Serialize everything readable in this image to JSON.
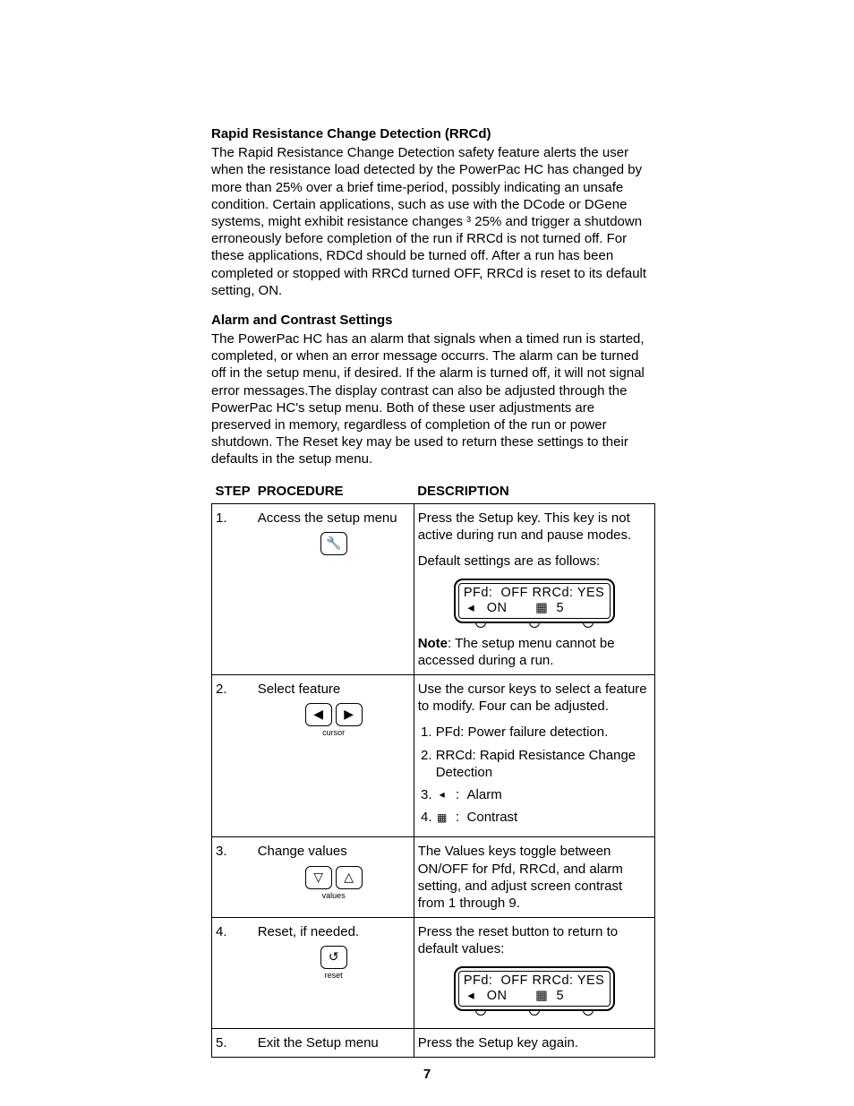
{
  "rrcd": {
    "heading": "Rapid Resistance Change Detection (RRCd)",
    "body": "The Rapid Resistance Change Detection safety feature alerts the user when the resistance load detected by the PowerPac HC has changed by more than 25% over a brief time-period, possibly indicating an unsafe condition. Certain applications, such as use with the DCode or DGene systems, might exhibit resistance changes ³ 25% and trigger a shutdown erroneously before completion of the run if RRCd is not turned off. For these applications, RDCd should be turned off. After a run has been completed or stopped with RRCd turned OFF, RRCd is reset to its default setting, ON."
  },
  "alarm": {
    "heading": "Alarm and Contrast Settings",
    "body": "The PowerPac HC has an alarm that signals when a timed run is started, completed, or when an error message occurrs. The alarm can be turned off in the setup menu, if desired. If the alarm is turned off, it will not signal error messages.The display contrast can also be adjusted through the PowerPac HC's setup menu. Both of these user adjustments are preserved in memory, regardless of completion of the run or power shutdown. The Reset key may be used to return these settings to their defaults in the setup menu."
  },
  "table": {
    "headers": {
      "step": "STEP",
      "procedure": "PROCEDURE",
      "description": "DESCRIPTION"
    },
    "rows": [
      {
        "num": "1.",
        "proc": "Access the setup menu",
        "icon": "setup",
        "desc": {
          "para1": "Press the Setup key. This key is not active during run and pause modes.",
          "para2": "Default settings are as follows:",
          "lcd": {
            "line1": "PFd:  OFF RRCd: YES",
            "line2": " ◂   ON       ▦  5"
          },
          "note_label": "Note",
          "note_text": ": The setup menu cannot be accessed during a run."
        }
      },
      {
        "num": "2.",
        "proc": "Select feature",
        "icon": "cursor",
        "icon_caption": "cursor",
        "desc": {
          "intro": "Use the cursor keys to select a feature to modify. Four can be adjusted.",
          "items": [
            "PFd: Power failure detection.",
            "RRCd: Rapid Resistance Change Detection",
            "◂   :   Alarm",
            "▦   :   Contrast"
          ]
        }
      },
      {
        "num": "3.",
        "proc": "Change values",
        "icon": "values",
        "icon_caption": "values",
        "desc": {
          "text": "The Values keys toggle between ON/OFF for Pfd, RRCd, and alarm setting, and adjust screen contrast from 1 through 9."
        }
      },
      {
        "num": "4.",
        "proc": "Reset, if needed.",
        "icon": "reset",
        "icon_caption": "reset",
        "desc": {
          "text": "Press the reset button to return to default values:",
          "lcd": {
            "line1": "PFd:  OFF RRCd: YES",
            "line2": " ◂   ON       ▦  5"
          }
        }
      },
      {
        "num": "5.",
        "proc": "Exit the Setup menu",
        "icon": null,
        "desc": {
          "text": "Press the Setup key again."
        }
      }
    ]
  },
  "page_number": "7",
  "icons": {
    "setup": "🔧",
    "cursor_left": "◀",
    "cursor_right": "▶",
    "values_down": "▽",
    "values_up": "△",
    "reset": "↺"
  }
}
